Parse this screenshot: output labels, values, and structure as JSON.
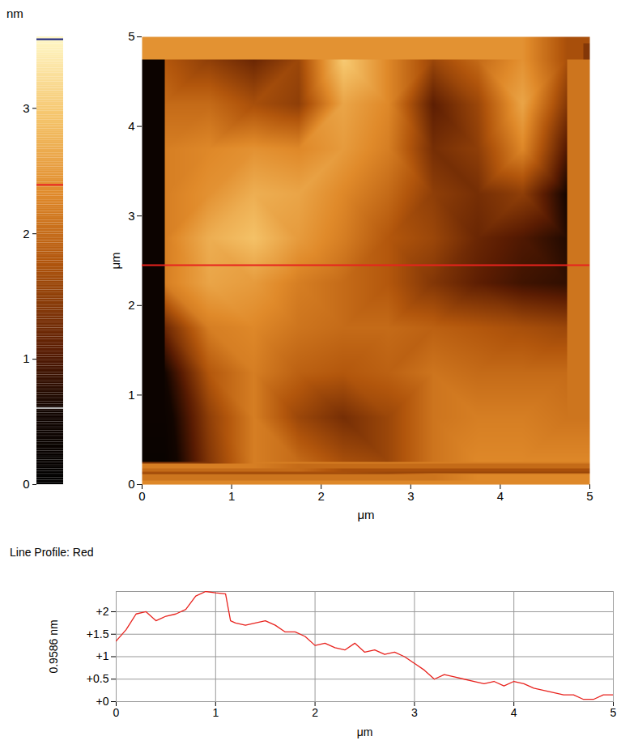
{
  "chart_data": [
    {
      "type": "heatmap",
      "xlabel": "μm",
      "ylabel": "μm",
      "xlim": [
        0,
        5
      ],
      "ylim": [
        0,
        5
      ],
      "xticks": [
        0,
        1,
        2,
        3,
        4,
        5
      ],
      "yticks": [
        0,
        1,
        2,
        3,
        4,
        5
      ],
      "x": [
        0.25,
        0.75,
        1.25,
        1.75,
        2.25,
        2.75,
        3.25,
        3.75,
        4.25,
        4.75
      ],
      "y": [
        4.75,
        4.25,
        3.75,
        3.25,
        2.75,
        2.25,
        1.75,
        1.25,
        0.75,
        0.25
      ],
      "z": [
        [
          1.8,
          1.5,
          1.2,
          1.6,
          3.0,
          2.3,
          1.6,
          2.0,
          2.4,
          1.7
        ],
        [
          2.0,
          2.0,
          1.7,
          1.5,
          2.6,
          2.3,
          1.1,
          1.6,
          2.6,
          1.4
        ],
        [
          2.2,
          2.3,
          2.4,
          2.3,
          2.5,
          2.2,
          1.3,
          1.5,
          2.3,
          1.0
        ],
        [
          2.2,
          2.4,
          2.7,
          2.6,
          2.3,
          2.0,
          1.5,
          1.3,
          1.5,
          0.6
        ],
        [
          2.2,
          2.7,
          2.9,
          2.5,
          2.2,
          1.8,
          1.6,
          1.2,
          1.0,
          0.7
        ],
        [
          2.2,
          2.6,
          2.5,
          2.2,
          2.0,
          1.8,
          1.4,
          1.1,
          0.9,
          0.8
        ],
        [
          1.2,
          2.2,
          2.3,
          2.1,
          2.0,
          2.0,
          1.9,
          1.8,
          1.7,
          1.6
        ],
        [
          0.6,
          1.8,
          2.2,
          1.9,
          1.8,
          1.9,
          2.1,
          2.0,
          2.0,
          2.0
        ],
        [
          0.4,
          1.5,
          2.2,
          1.6,
          1.3,
          1.6,
          2.1,
          2.2,
          2.2,
          2.1
        ],
        [
          0.3,
          1.4,
          2.2,
          2.0,
          1.7,
          1.6,
          2.1,
          2.3,
          2.3,
          2.3
        ]
      ],
      "colorbar": {
        "label": "nm",
        "range": [
          0,
          3.57
        ],
        "ticks": [
          0,
          1,
          2,
          3
        ],
        "marks": [
          {
            "value": 3.55,
            "color": "#1a237e"
          },
          {
            "value": 2.39,
            "color": "#e8231e"
          },
          {
            "value": 0.61,
            "color": "#b0b0b0"
          }
        ]
      },
      "profile_line": {
        "y": 2.45,
        "color": "#e8231e"
      }
    },
    {
      "type": "line",
      "title": "Line Profile: Red",
      "xlabel": "μm",
      "ylabel": "0.9586 nm",
      "color": "#e8231e",
      "grid": true,
      "xlim": [
        0,
        5
      ],
      "ylim": [
        0,
        2.45
      ],
      "xticks": [
        0,
        1,
        2,
        3,
        4,
        5
      ],
      "yticks": [
        {
          "value": 0,
          "label": "+0"
        },
        {
          "value": 0.5,
          "label": "+0.5"
        },
        {
          "value": 1,
          "label": "+1"
        },
        {
          "value": 1.5,
          "label": "+1.5"
        },
        {
          "value": 2,
          "label": "+2"
        }
      ],
      "x": [
        0,
        0.1,
        0.2,
        0.3,
        0.4,
        0.5,
        0.6,
        0.7,
        0.8,
        0.9,
        1.0,
        1.1,
        1.15,
        1.2,
        1.3,
        1.4,
        1.5,
        1.6,
        1.7,
        1.8,
        1.9,
        2.0,
        2.1,
        2.2,
        2.3,
        2.4,
        2.5,
        2.6,
        2.7,
        2.8,
        2.9,
        3.0,
        3.1,
        3.2,
        3.3,
        3.4,
        3.5,
        3.6,
        3.7,
        3.8,
        3.9,
        4.0,
        4.1,
        4.2,
        4.3,
        4.4,
        4.5,
        4.6,
        4.7,
        4.8,
        4.9,
        5.0
      ],
      "values": [
        1.35,
        1.6,
        1.95,
        2.0,
        1.8,
        1.9,
        1.95,
        2.05,
        2.35,
        2.45,
        2.42,
        2.4,
        1.8,
        1.75,
        1.7,
        1.75,
        1.8,
        1.7,
        1.55,
        1.55,
        1.45,
        1.25,
        1.3,
        1.2,
        1.15,
        1.3,
        1.1,
        1.15,
        1.05,
        1.1,
        1.0,
        0.85,
        0.7,
        0.5,
        0.6,
        0.55,
        0.5,
        0.45,
        0.4,
        0.45,
        0.35,
        0.45,
        0.4,
        0.3,
        0.25,
        0.2,
        0.15,
        0.15,
        0.05,
        0.05,
        0.15,
        0.15
      ]
    }
  ]
}
